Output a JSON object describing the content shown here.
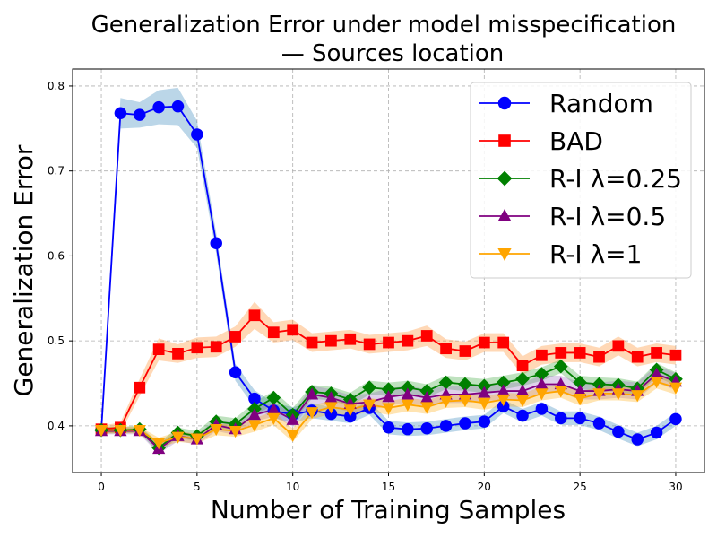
{
  "chart_data": {
    "type": "line",
    "title_lines": [
      "Generalization Error under model misspecification",
      "— Sources location"
    ],
    "xlabel": "Number of Training Samples",
    "ylabel": "Generalization Error",
    "xlim": [
      -1.5,
      31.5
    ],
    "ylim": [
      0.345,
      0.82
    ],
    "xticks": [
      0,
      5,
      10,
      15,
      20,
      25,
      30
    ],
    "yticks": [
      0.4,
      0.5,
      0.6,
      0.7,
      0.8
    ],
    "ytick_labels": [
      "0.4",
      "0.5",
      "0.6",
      "0.7",
      "0.8"
    ],
    "grid": true,
    "legend_position": "top-right",
    "x": [
      0,
      1,
      2,
      3,
      4,
      5,
      6,
      7,
      8,
      9,
      10,
      11,
      12,
      13,
      14,
      15,
      16,
      17,
      18,
      19,
      20,
      21,
      22,
      23,
      24,
      25,
      26,
      27,
      28,
      29,
      30
    ],
    "series": [
      {
        "name": "Random",
        "color": "#0000ff",
        "band_color": "#1f77b4",
        "marker": "circle",
        "values": [
          0.395,
          0.768,
          0.766,
          0.775,
          0.776,
          0.743,
          0.615,
          0.463,
          0.432,
          0.418,
          0.413,
          0.418,
          0.414,
          0.411,
          0.421,
          0.398,
          0.396,
          0.397,
          0.4,
          0.403,
          0.405,
          0.423,
          0.412,
          0.42,
          0.409,
          0.409,
          0.403,
          0.393,
          0.384,
          0.392,
          0.408
        ],
        "spread": [
          0.004,
          0.018,
          0.015,
          0.02,
          0.022,
          0.016,
          0.012,
          0.01,
          0.01,
          0.009,
          0.009,
          0.009,
          0.008,
          0.008,
          0.008,
          0.008,
          0.008,
          0.008,
          0.008,
          0.008,
          0.008,
          0.008,
          0.008,
          0.008,
          0.008,
          0.008,
          0.008,
          0.008,
          0.008,
          0.008,
          0.008
        ]
      },
      {
        "name": "BAD",
        "color": "#ff0000",
        "band_color": "#ff7f0e",
        "marker": "square",
        "values": [
          0.396,
          0.398,
          0.445,
          0.49,
          0.485,
          0.492,
          0.493,
          0.505,
          0.53,
          0.51,
          0.513,
          0.498,
          0.5,
          0.502,
          0.496,
          0.498,
          0.5,
          0.506,
          0.491,
          0.488,
          0.498,
          0.498,
          0.471,
          0.483,
          0.486,
          0.486,
          0.481,
          0.494,
          0.481,
          0.486,
          0.483
        ],
        "spread": [
          0.004,
          0.006,
          0.01,
          0.013,
          0.011,
          0.012,
          0.012,
          0.012,
          0.016,
          0.012,
          0.012,
          0.011,
          0.011,
          0.011,
          0.011,
          0.011,
          0.011,
          0.012,
          0.011,
          0.011,
          0.011,
          0.011,
          0.011,
          0.011,
          0.011,
          0.011,
          0.011,
          0.011,
          0.011,
          0.011,
          0.011
        ]
      },
      {
        "name": "R-I λ=0.25",
        "color": "#008000",
        "band_color": "#2ca02c",
        "marker": "diamond",
        "values": [
          0.395,
          0.395,
          0.396,
          0.374,
          0.392,
          0.388,
          0.405,
          0.402,
          0.42,
          0.433,
          0.413,
          0.44,
          0.438,
          0.431,
          0.445,
          0.443,
          0.445,
          0.441,
          0.451,
          0.449,
          0.447,
          0.451,
          0.455,
          0.461,
          0.47,
          0.451,
          0.449,
          0.448,
          0.444,
          0.466,
          0.455
        ],
        "spread": [
          0.004,
          0.004,
          0.004,
          0.006,
          0.006,
          0.006,
          0.007,
          0.007,
          0.008,
          0.008,
          0.008,
          0.008,
          0.008,
          0.008,
          0.008,
          0.008,
          0.008,
          0.008,
          0.008,
          0.008,
          0.008,
          0.008,
          0.008,
          0.008,
          0.008,
          0.008,
          0.008,
          0.008,
          0.008,
          0.008,
          0.008
        ]
      },
      {
        "name": "R-I λ=0.5",
        "color": "#800080",
        "band_color": "#9467bd",
        "marker": "triangle-up",
        "values": [
          0.394,
          0.394,
          0.394,
          0.373,
          0.388,
          0.384,
          0.401,
          0.396,
          0.413,
          0.419,
          0.407,
          0.437,
          0.433,
          0.426,
          0.428,
          0.434,
          0.437,
          0.433,
          0.437,
          0.437,
          0.439,
          0.441,
          0.441,
          0.449,
          0.449,
          0.441,
          0.441,
          0.443,
          0.441,
          0.461,
          0.452
        ],
        "spread": [
          0.004,
          0.004,
          0.004,
          0.006,
          0.006,
          0.006,
          0.007,
          0.007,
          0.008,
          0.008,
          0.008,
          0.01,
          0.01,
          0.01,
          0.01,
          0.01,
          0.01,
          0.01,
          0.01,
          0.01,
          0.01,
          0.01,
          0.01,
          0.01,
          0.01,
          0.01,
          0.01,
          0.01,
          0.01,
          0.01,
          0.01
        ]
      },
      {
        "name": "R-I λ=1",
        "color": "#ffa500",
        "band_color": "#ffa500",
        "marker": "triangle-down",
        "values": [
          0.395,
          0.395,
          0.395,
          0.38,
          0.387,
          0.385,
          0.396,
          0.394,
          0.401,
          0.409,
          0.389,
          0.416,
          0.422,
          0.419,
          0.425,
          0.421,
          0.425,
          0.422,
          0.429,
          0.43,
          0.427,
          0.431,
          0.43,
          0.438,
          0.441,
          0.432,
          0.438,
          0.438,
          0.436,
          0.452,
          0.445
        ],
        "spread": [
          0.004,
          0.004,
          0.004,
          0.006,
          0.006,
          0.006,
          0.007,
          0.007,
          0.008,
          0.008,
          0.008,
          0.008,
          0.008,
          0.008,
          0.008,
          0.008,
          0.008,
          0.008,
          0.008,
          0.008,
          0.008,
          0.008,
          0.008,
          0.008,
          0.008,
          0.008,
          0.008,
          0.008,
          0.008,
          0.008,
          0.008
        ]
      }
    ]
  }
}
